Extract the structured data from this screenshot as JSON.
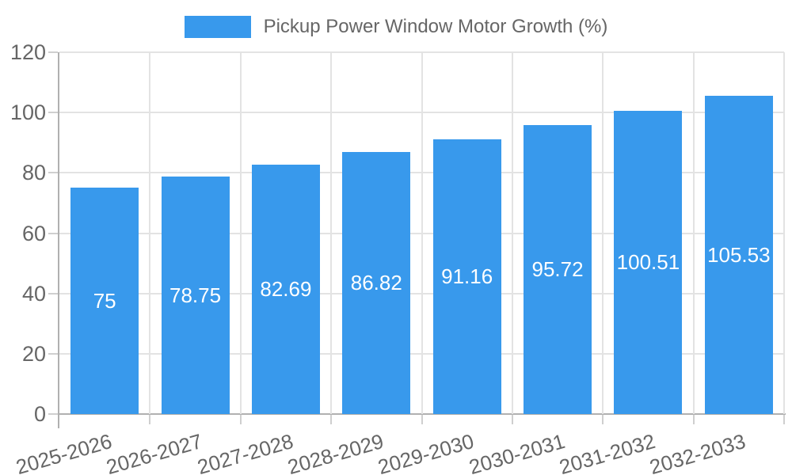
{
  "legend": {
    "label": "Pickup Power Window Motor Growth (%)"
  },
  "chart_data": {
    "type": "bar",
    "title": "Pickup Power Window Motor Growth (%)",
    "categories": [
      "2025-2026",
      "2026-2027",
      "2027-2028",
      "2028-2029",
      "2029-2030",
      "2030-2031",
      "2031-2032",
      "2032-2033"
    ],
    "values": [
      75,
      78.75,
      82.69,
      86.82,
      91.16,
      95.72,
      100.51,
      105.53
    ],
    "value_labels": [
      "75",
      "78.75",
      "82.69",
      "86.82",
      "91.16",
      "95.72",
      "100.51",
      "105.53"
    ],
    "ylim": [
      0,
      120
    ],
    "yticks": [
      0,
      20,
      40,
      60,
      80,
      100,
      120
    ],
    "grid": true,
    "legend_position": "top",
    "xlabel": "",
    "ylabel": ""
  },
  "colors": {
    "bar": "#3899ec",
    "value_text": "#ffffff",
    "grid": "#e3e3e3",
    "axis": "#b0b0b0",
    "tick": "#cfcfcf",
    "tick_text": "#666666",
    "background": "#ffffff"
  }
}
